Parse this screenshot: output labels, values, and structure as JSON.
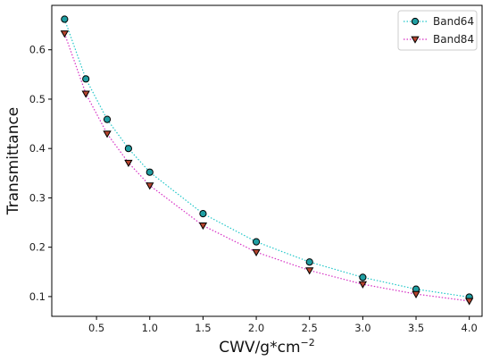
{
  "chart_data": {
    "type": "line",
    "title": "",
    "xlabel_base": "CWV/g*cm",
    "xlabel_exp": "−2",
    "ylabel": "Transmittance",
    "xlim": [
      0.08,
      4.12
    ],
    "ylim": [
      0.06,
      0.69
    ],
    "x_ticks": [
      0.5,
      1.0,
      1.5,
      2.0,
      2.5,
      3.0,
      3.5,
      4.0
    ],
    "x_tick_labels": [
      "0.5",
      "1.0",
      "1.5",
      "2.0",
      "2.5",
      "3.0",
      "3.5",
      "4.0"
    ],
    "y_ticks": [
      0.1,
      0.2,
      0.3,
      0.4,
      0.5,
      0.6
    ],
    "y_tick_labels": [
      "0.1",
      "0.2",
      "0.3",
      "0.4",
      "0.5",
      "0.6"
    ],
    "grid": false,
    "legend_position": "top-right",
    "x": [
      0.2,
      0.4,
      0.6,
      0.8,
      1.0,
      1.5,
      2.0,
      2.5,
      3.0,
      3.5,
      4.0
    ],
    "series": [
      {
        "name": "Band64",
        "marker": "circle",
        "line_color": "#22c7c9",
        "marker_fill": "#1f9ea2",
        "values": [
          0.662,
          0.541,
          0.459,
          0.4,
          0.352,
          0.268,
          0.211,
          0.17,
          0.139,
          0.115,
          0.099
        ]
      },
      {
        "name": "Band84",
        "marker": "triangle-down",
        "line_color": "#d62fc4",
        "marker_fill": "#b5442e",
        "values": [
          0.633,
          0.511,
          0.43,
          0.371,
          0.325,
          0.244,
          0.19,
          0.153,
          0.125,
          0.105,
          0.091
        ]
      }
    ]
  }
}
